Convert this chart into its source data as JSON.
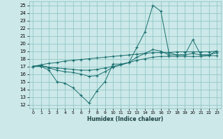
{
  "xlabel": "Humidex (Indice chaleur)",
  "ylabel": "",
  "bg_color": "#cce8e8",
  "grid_color": "#88c0c0",
  "line_color": "#1a7070",
  "xlim": [
    -0.5,
    23.5
  ],
  "ylim": [
    11.5,
    25.5
  ],
  "xticks": [
    0,
    1,
    2,
    3,
    4,
    5,
    6,
    7,
    8,
    9,
    10,
    11,
    12,
    13,
    14,
    15,
    16,
    17,
    18,
    19,
    20,
    21,
    22,
    23
  ],
  "yticks": [
    12,
    13,
    14,
    15,
    16,
    17,
    18,
    19,
    20,
    21,
    22,
    23,
    24,
    25
  ],
  "series": [
    [
      17.0,
      17.0,
      16.5,
      15.0,
      14.8,
      14.2,
      13.2,
      12.2,
      13.8,
      15.0,
      17.3,
      17.3,
      17.5,
      19.5,
      21.5,
      25.0,
      24.2,
      18.8,
      18.5,
      18.5,
      20.5,
      18.5,
      18.5,
      19.0
    ],
    [
      17.0,
      17.1,
      16.8,
      16.5,
      16.3,
      16.2,
      16.0,
      15.7,
      15.8,
      16.3,
      16.9,
      17.2,
      17.5,
      18.2,
      18.7,
      19.2,
      19.0,
      18.5,
      18.5,
      18.5,
      18.7,
      18.5,
      18.5,
      18.8
    ],
    [
      17.0,
      17.1,
      16.9,
      16.8,
      16.7,
      16.6,
      16.5,
      16.5,
      16.6,
      16.8,
      17.0,
      17.2,
      17.5,
      17.8,
      18.0,
      18.2,
      18.3,
      18.3,
      18.3,
      18.3,
      18.3,
      18.3,
      18.4,
      18.4
    ],
    [
      17.0,
      17.2,
      17.4,
      17.5,
      17.7,
      17.8,
      17.9,
      18.0,
      18.1,
      18.2,
      18.3,
      18.4,
      18.5,
      18.6,
      18.7,
      18.8,
      18.8,
      18.8,
      18.9,
      18.9,
      18.9,
      18.9,
      18.9,
      19.0
    ]
  ]
}
